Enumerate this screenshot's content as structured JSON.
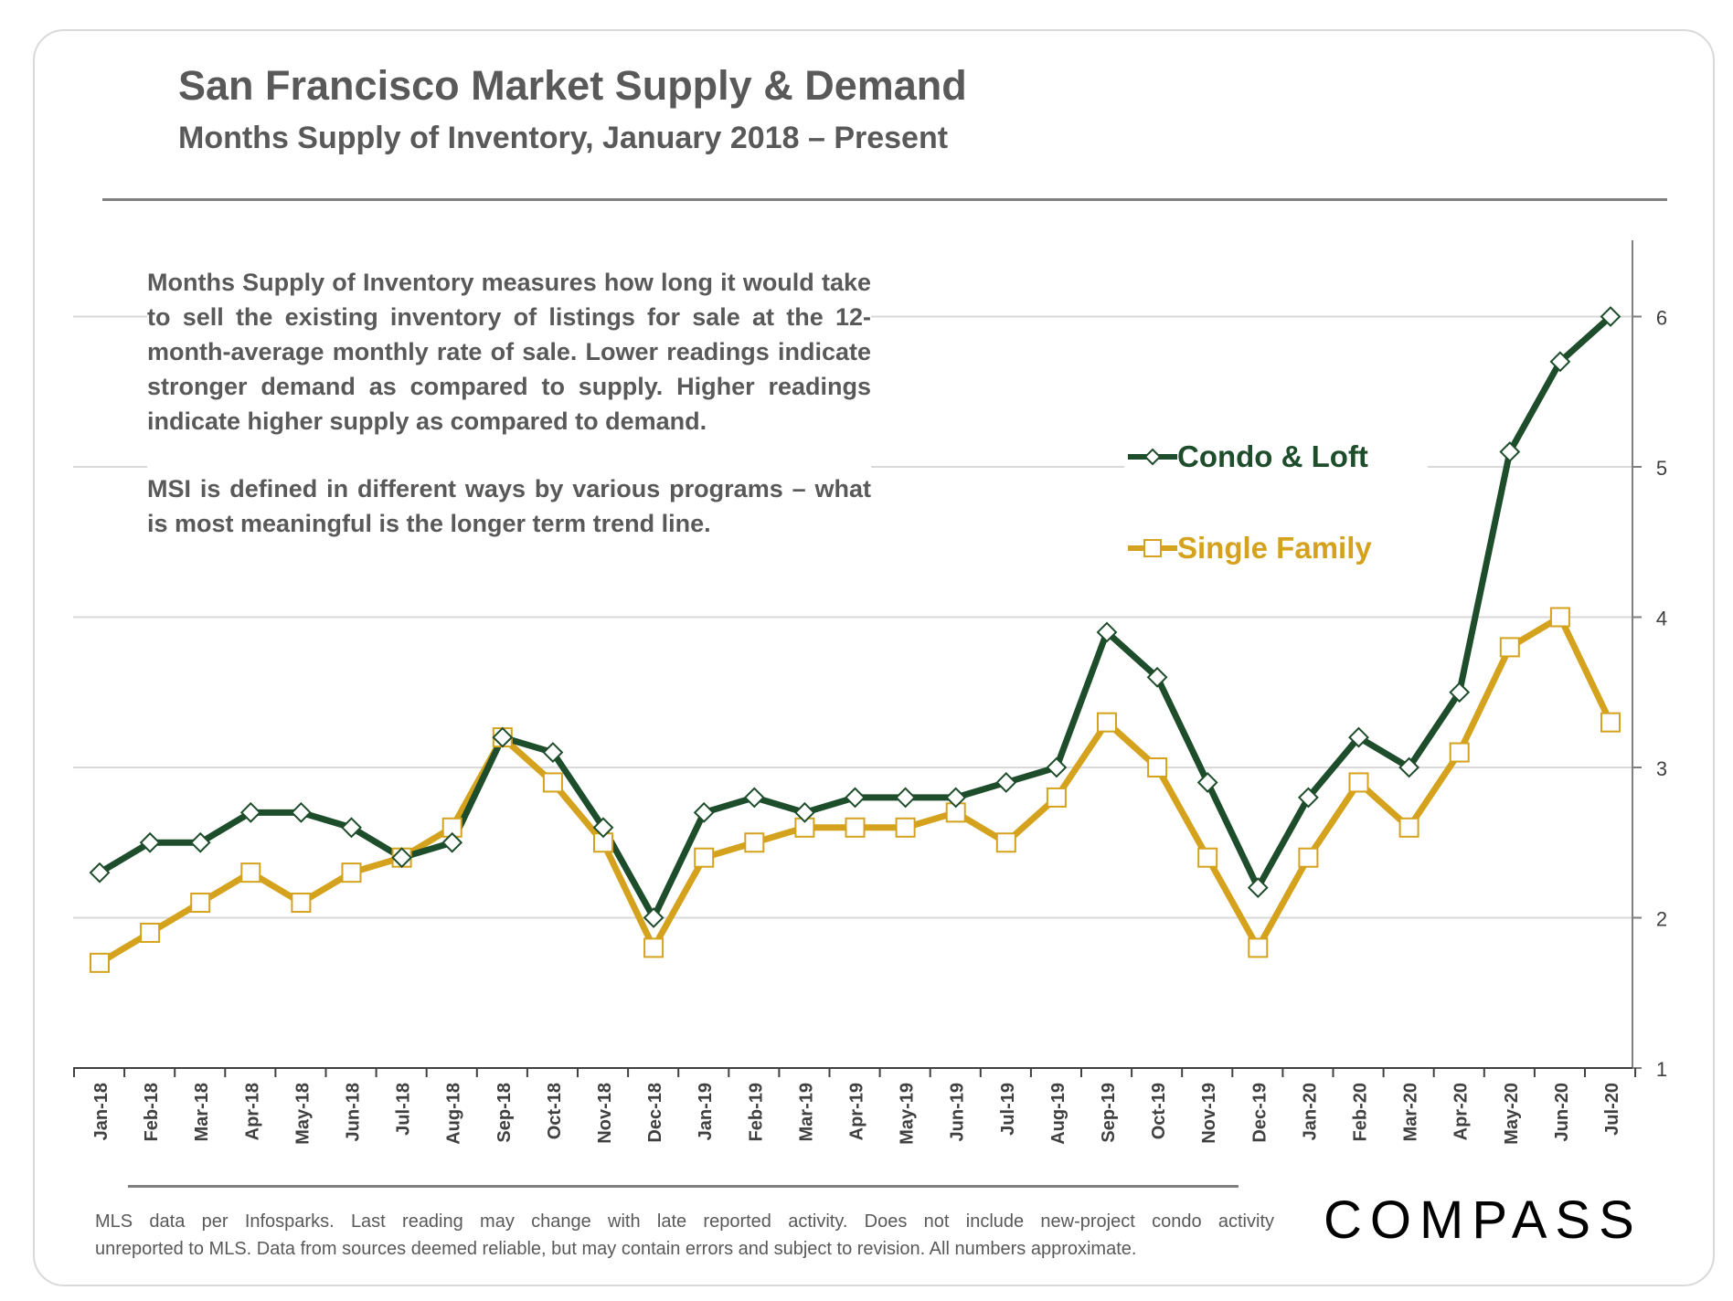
{
  "header": {
    "title": "San Francisco Market Supply & Demand",
    "subtitle": "Months Supply of Inventory, January 2018 – Present"
  },
  "note": {
    "paragraph1": "Months Supply of Inventory measures how long it would take to sell the existing inventory of listings for sale at the 12-month-average monthly rate of sale. Lower readings indicate stronger demand as compared to supply. Higher readings indicate higher supply as compared to demand.",
    "paragraph2": "MSI is defined in different ways by various programs – what is most meaningful is the longer term trend line."
  },
  "footer": {
    "line1": "MLS data per Infosparks. Last reading may change with late reported activity. Does not include new-project condo activity",
    "line2": "unreported to MLS. Data from sources deemed reliable, but may contain errors and subject to revision. All numbers approximate.",
    "brand": "COMPASS"
  },
  "colors": {
    "condo": "#1e4d2b",
    "single_family": "#d4a21c",
    "grid": "#d9d9d9",
    "axis": "#7f7f7f",
    "text": "#595959"
  },
  "chart_data": {
    "type": "line",
    "title": "San Francisco Market Supply & Demand",
    "subtitle": "Months Supply of Inventory, January 2018 – Present",
    "categories": [
      "Jan-18",
      "Feb-18",
      "Mar-18",
      "Apr-18",
      "May-18",
      "Jun-18",
      "Jul-18",
      "Aug-18",
      "Sep-18",
      "Oct-18",
      "Nov-18",
      "Dec-18",
      "Jan-19",
      "Feb-19",
      "Mar-19",
      "Apr-19",
      "May-19",
      "Jun-19",
      "Jul-19",
      "Aug-19",
      "Sep-19",
      "Oct-19",
      "Nov-19",
      "Dec-19",
      "Jan-20",
      "Feb-20",
      "Mar-20",
      "Apr-20",
      "May-20",
      "Jun-20",
      "Jul-20"
    ],
    "series": [
      {
        "name": "Condo & Loft",
        "marker": "diamond",
        "values": [
          2.3,
          2.5,
          2.5,
          2.7,
          2.7,
          2.6,
          2.4,
          2.5,
          3.2,
          3.1,
          2.6,
          2.0,
          2.7,
          2.8,
          2.7,
          2.8,
          2.8,
          2.8,
          2.9,
          3.0,
          3.9,
          3.6,
          2.9,
          2.2,
          2.8,
          3.2,
          3.0,
          3.5,
          5.1,
          5.7,
          6.0
        ]
      },
      {
        "name": "Single Family",
        "marker": "square",
        "values": [
          1.7,
          1.9,
          2.1,
          2.3,
          2.1,
          2.3,
          2.4,
          2.6,
          3.2,
          2.9,
          2.5,
          1.8,
          2.4,
          2.5,
          2.6,
          2.6,
          2.6,
          2.7,
          2.5,
          2.8,
          3.3,
          3.0,
          2.4,
          1.8,
          2.4,
          2.9,
          2.6,
          3.1,
          3.8,
          4.0,
          3.3
        ]
      }
    ],
    "ylim": [
      1,
      6.5
    ],
    "yticks": [
      1,
      2,
      3,
      4,
      5,
      6
    ],
    "y_axis_side": "right",
    "grid": "horizontal",
    "xlabel": "",
    "ylabel": ""
  }
}
